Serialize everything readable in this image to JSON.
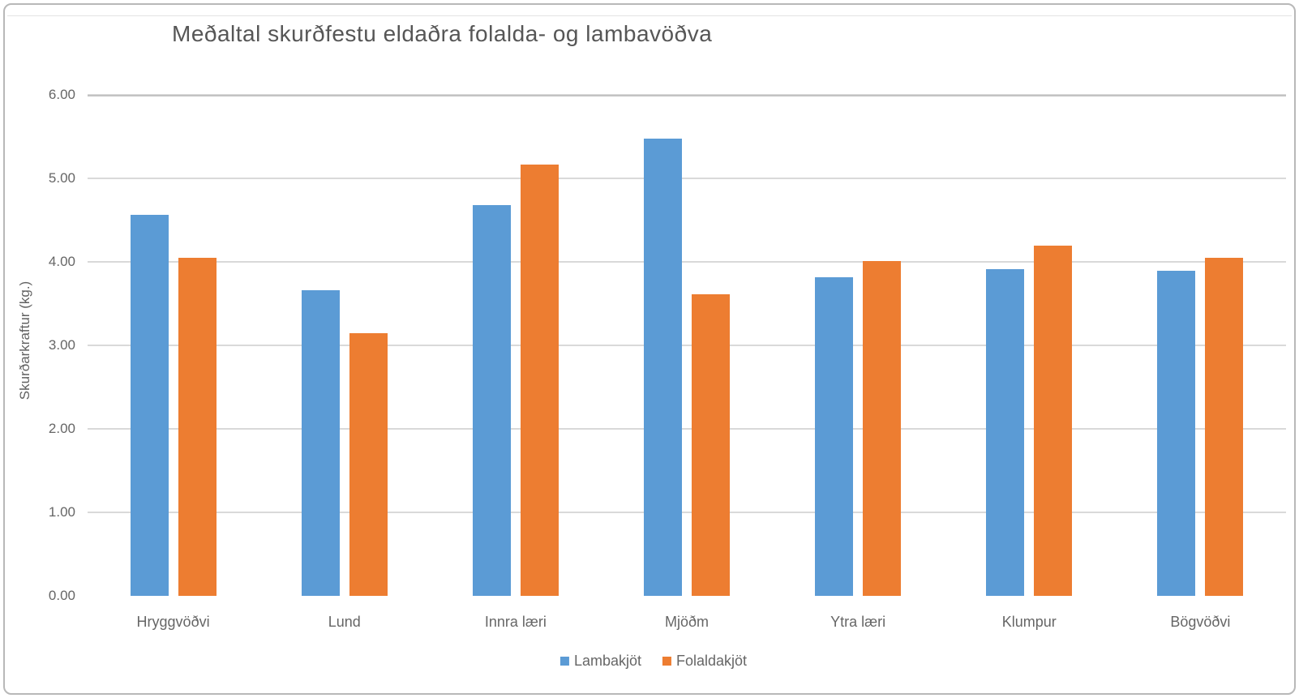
{
  "chart_data": {
    "type": "bar",
    "title": "Meðaltal skurðfestu eldaðra folalda- og lambavöðva",
    "xlabel": "",
    "ylabel": "Skurðarkraftur (kg.)",
    "categories": [
      "Hryggvöðvi",
      "Lund",
      "Innra læri",
      "Mjöðm",
      "Ytra læri",
      "Klumpur",
      "Bögvöðvi"
    ],
    "series": [
      {
        "name": "Lambakjöt",
        "color": "#5B9BD5",
        "values": [
          4.56,
          3.66,
          4.68,
          5.48,
          3.82,
          3.91,
          3.89
        ]
      },
      {
        "name": "Folaldakjöt",
        "color": "#ED7D31",
        "values": [
          4.05,
          3.15,
          5.17,
          3.61,
          4.01,
          4.19,
          4.05
        ]
      }
    ],
    "ylim": [
      0,
      6
    ],
    "ytick_step": 1,
    "ytick_labels": [
      "0.00",
      "1.00",
      "2.00",
      "3.00",
      "4.00",
      "5.00",
      "6.00"
    ],
    "grid": true,
    "legend_position": "bottom"
  },
  "colors": {
    "background": "#FFFFFF",
    "border": "#B8B8B8",
    "gridline": "#D9D9D9",
    "axis_line": "#C3C3C3",
    "title_text": "#565656",
    "label_text": "#666666",
    "series_blue": "#5B9BD5",
    "series_orange": "#ED7D31"
  }
}
